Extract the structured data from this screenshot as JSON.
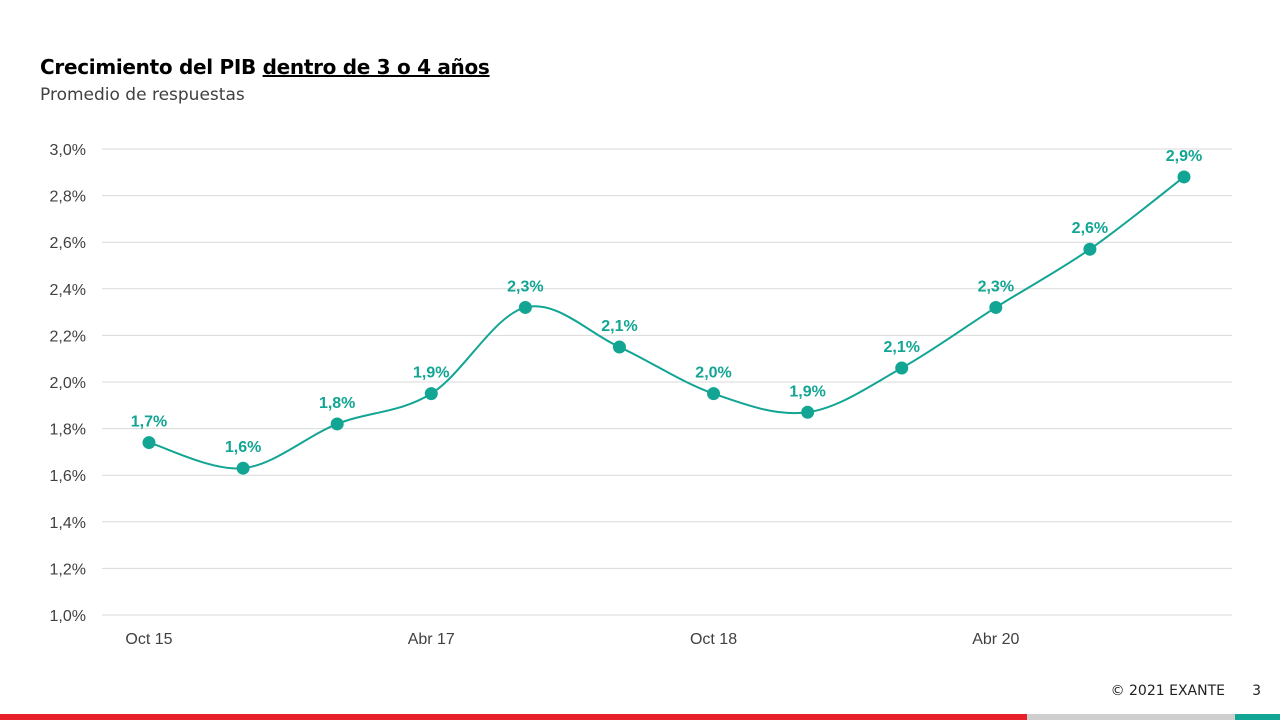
{
  "slide": {
    "title_main": "Crecimiento del PIB ",
    "title_underlined": "dentro de 3 o 4 años",
    "subtitle": "Promedio de respuestas",
    "copyright": "© 2021 EXANTE",
    "page_number": "3"
  },
  "colors": {
    "series": "#12a594",
    "grid": "#d9d9d9",
    "footer_red": "#e8202a",
    "footer_gray": "#cfcfcf",
    "footer_teal": "#12a594"
  },
  "chart_data": {
    "type": "line",
    "title": "Crecimiento del PIB dentro de 3 o 4 años",
    "subtitle": "Promedio de respuestas",
    "x": [
      "Oct 15",
      "",
      "",
      "Abr 17",
      "",
      "",
      "Oct 18",
      "",
      "",
      "Abr 20",
      "",
      ""
    ],
    "xtick_labels": [
      "Oct 15",
      "Abr 17",
      "Oct 18",
      "Abr 20"
    ],
    "series": [
      {
        "values": [
          1.74,
          1.63,
          1.82,
          1.95,
          2.32,
          2.15,
          1.95,
          1.87,
          2.06,
          2.32,
          2.57,
          2.88
        ],
        "data_labels": [
          "1,7%",
          "1,6%",
          "1,8%",
          "1,9%",
          "2,3%",
          "2,1%",
          "2,0%",
          "1,9%",
          "2,1%",
          "2,3%",
          "2,6%",
          "2,9%"
        ]
      }
    ],
    "ylim": [
      1.0,
      3.0
    ],
    "ytick_labels": [
      "1,0%",
      "1,2%",
      "1,4%",
      "1,6%",
      "1,8%",
      "2,0%",
      "2,2%",
      "2,4%",
      "2,6%",
      "2,8%",
      "3,0%"
    ],
    "grid": true,
    "smooth": true,
    "legend": "none"
  }
}
